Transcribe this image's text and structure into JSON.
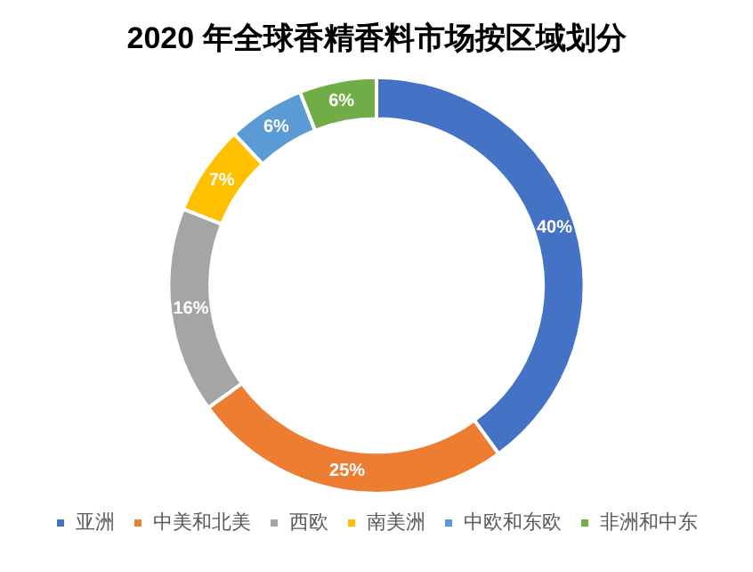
{
  "chart_data": {
    "type": "donut",
    "title": "2020 年全球香精香料市场按区域划分",
    "categories": [
      "亚洲",
      "中美和北美",
      "西欧",
      "南美洲",
      "中欧和东欧",
      "非洲和中东"
    ],
    "values": [
      40,
      25,
      16,
      7,
      6,
      6
    ],
    "colors": [
      "#4472c4",
      "#ed7d31",
      "#a5a5a5",
      "#ffc000",
      "#5b9bd5",
      "#70ad47"
    ],
    "value_labels": [
      "40%",
      "25%",
      "16%",
      "7%",
      "6%",
      "6%"
    ],
    "legend": "bottom"
  }
}
